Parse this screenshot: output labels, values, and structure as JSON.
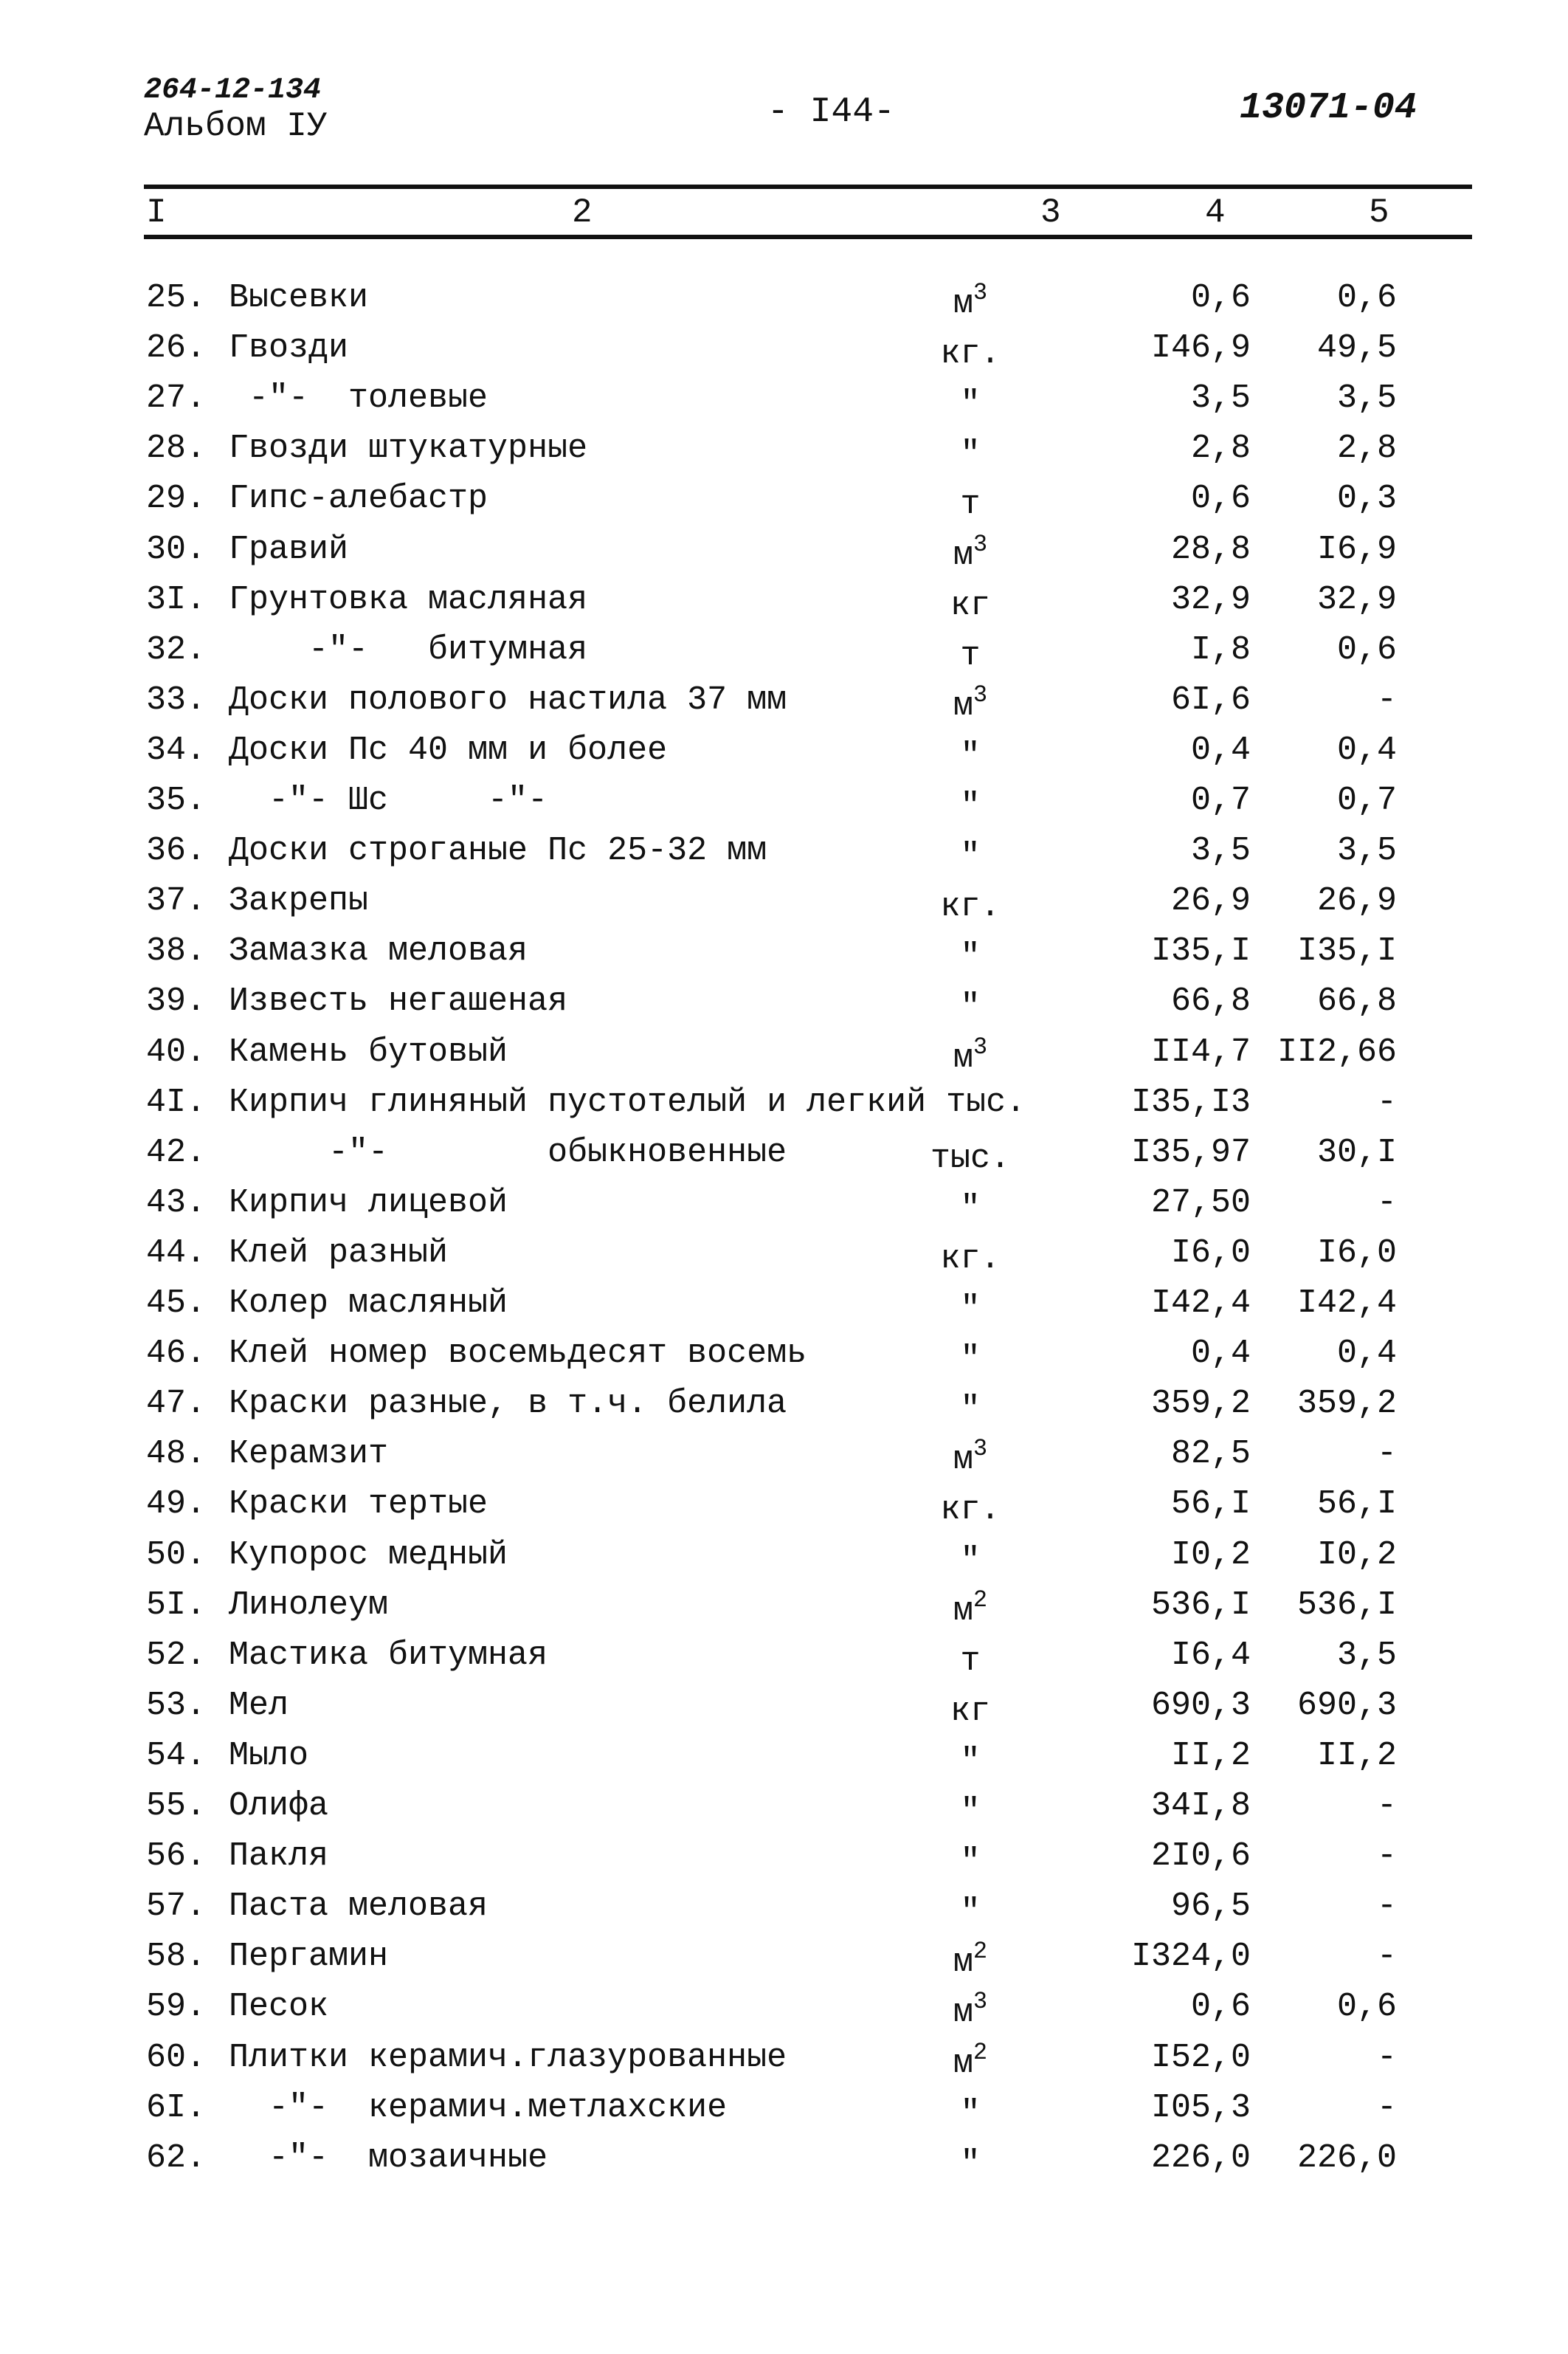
{
  "header": {
    "doc_code": "264-12-134",
    "album": "Альбом IУ",
    "page_number": "- I44-",
    "reference": "13071-04"
  },
  "columns": [
    "I",
    "2",
    "3",
    "4",
    "5"
  ],
  "rows": [
    {
      "num": "25.",
      "name": "Высевки",
      "unit": "м",
      "sup": "3",
      "c4": "0,6",
      "c5": "0,6"
    },
    {
      "num": "26.",
      "name": "Гвозди",
      "unit": "кг.",
      "sup": "",
      "c4": "I46,9",
      "c5": "49,5"
    },
    {
      "num": "27.",
      "name": " -\"-  толевые",
      "unit": "\"",
      "sup": "",
      "c4": "3,5",
      "c5": "3,5"
    },
    {
      "num": "28.",
      "name": "Гвозди штукатурные",
      "unit": "\"",
      "sup": "",
      "c4": "2,8",
      "c5": "2,8"
    },
    {
      "num": "29.",
      "name": "Гипс-алебастр",
      "unit": "т",
      "sup": "",
      "c4": "0,6",
      "c5": "0,3"
    },
    {
      "num": "30.",
      "name": "Гравий",
      "unit": "м",
      "sup": "3",
      "c4": "28,8",
      "c5": "I6,9"
    },
    {
      "num": "3I.",
      "name": "Грунтовка масляная",
      "unit": "кг",
      "sup": "",
      "c4": "32,9",
      "c5": "32,9"
    },
    {
      "num": "32.",
      "name": "    -\"-   битумная",
      "unit": "т",
      "sup": "",
      "c4": "I,8",
      "c5": "0,6"
    },
    {
      "num": "33.",
      "name": "Доски полового настила 37 мм",
      "unit": "м",
      "sup": "3",
      "c4": "6I,6",
      "c5": "-"
    },
    {
      "num": "34.",
      "name": "Доски Пс 40 мм и более",
      "unit": "\"",
      "sup": "",
      "c4": "0,4",
      "c5": "0,4"
    },
    {
      "num": "35.",
      "name": "  -\"- Шс     -\"-",
      "unit": "\"",
      "sup": "",
      "c4": "0,7",
      "c5": "0,7"
    },
    {
      "num": "36.",
      "name": "Доски строганые Пс 25-32 мм",
      "unit": "\"",
      "sup": "",
      "c4": "3,5",
      "c5": "3,5"
    },
    {
      "num": "37.",
      "name": "Закрепы",
      "unit": "кг.",
      "sup": "",
      "c4": "26,9",
      "c5": "26,9"
    },
    {
      "num": "38.",
      "name": "Замазка меловая",
      "unit": "\"",
      "sup": "",
      "c4": "I35,I",
      "c5": "I35,I"
    },
    {
      "num": "39.",
      "name": "Известь негашеная",
      "unit": "\"",
      "sup": "",
      "c4": "66,8",
      "c5": "66,8"
    },
    {
      "num": "40.",
      "name": "Камень бутовый",
      "unit": "м",
      "sup": "3",
      "c4": "II4,7",
      "c5": "II2,66"
    },
    {
      "num": "4I.",
      "name": "Кирпич глиняный пустотелый и легкий тыс.",
      "unit": "",
      "sup": "",
      "c4": "I35,I3",
      "c5": "-"
    },
    {
      "num": "42.",
      "name": "     -\"-        обыкновенные",
      "unit": "тыс.",
      "sup": "",
      "c4": "I35,97",
      "c5": "30,I"
    },
    {
      "num": "43.",
      "name": "Кирпич лицевой",
      "unit": "\"",
      "sup": "",
      "c4": "27,50",
      "c5": "-"
    },
    {
      "num": "44.",
      "name": "Клей разный",
      "unit": "кг.",
      "sup": "",
      "c4": "I6,0",
      "c5": "I6,0"
    },
    {
      "num": "45.",
      "name": "Колер масляный",
      "unit": "\"",
      "sup": "",
      "c4": "I42,4",
      "c5": "I42,4"
    },
    {
      "num": "46.",
      "name": "Клей номер восемьдесят восемь",
      "unit": "\"",
      "sup": "",
      "c4": "0,4",
      "c5": "0,4"
    },
    {
      "num": "47.",
      "name": "Краски разные, в т.ч. белила",
      "unit": "\"",
      "sup": "",
      "c4": "359,2",
      "c5": "359,2"
    },
    {
      "num": "48.",
      "name": "Керамзит",
      "unit": "м",
      "sup": "3",
      "c4": "82,5",
      "c5": "-"
    },
    {
      "num": "49.",
      "name": "Краски тертые",
      "unit": "кг.",
      "sup": "",
      "c4": "56,I",
      "c5": "56,I"
    },
    {
      "num": "50.",
      "name": "Купорос медный",
      "unit": "\"",
      "sup": "",
      "c4": "I0,2",
      "c5": "I0,2"
    },
    {
      "num": "5I.",
      "name": "Линолеум",
      "unit": "м",
      "sup": "2",
      "c4": "536,I",
      "c5": "536,I"
    },
    {
      "num": "52.",
      "name": "Мастика битумная",
      "unit": "т",
      "sup": "",
      "c4": "I6,4",
      "c5": "3,5"
    },
    {
      "num": "53.",
      "name": "Мел",
      "unit": "кг",
      "sup": "",
      "c4": "690,3",
      "c5": "690,3"
    },
    {
      "num": "54.",
      "name": "Мыло",
      "unit": "\"",
      "sup": "",
      "c4": "II,2",
      "c5": "II,2"
    },
    {
      "num": "55.",
      "name": "Олифа",
      "unit": "\"",
      "sup": "",
      "c4": "34I,8",
      "c5": "-"
    },
    {
      "num": "56.",
      "name": "Пакля",
      "unit": "\"",
      "sup": "",
      "c4": "2I0,6",
      "c5": "-"
    },
    {
      "num": "57.",
      "name": "Паста меловая",
      "unit": "\"",
      "sup": "",
      "c4": "96,5",
      "c5": "-"
    },
    {
      "num": "58.",
      "name": "Пергамин",
      "unit": "м",
      "sup": "2",
      "c4": "I324,0",
      "c5": "-"
    },
    {
      "num": "59.",
      "name": "Песок",
      "unit": "м",
      "sup": "3",
      "c4": "0,6",
      "c5": "0,6"
    },
    {
      "num": "60.",
      "name": "Плитки керамич.глазурованные",
      "unit": "м",
      "sup": "2",
      "c4": "I52,0",
      "c5": "-"
    },
    {
      "num": "6I.",
      "name": "  -\"-  керамич.метлахские",
      "unit": "\"",
      "sup": "",
      "c4": "I05,3",
      "c5": "-"
    },
    {
      "num": "62.",
      "name": "  -\"-  мозаичные",
      "unit": "\"",
      "sup": "",
      "c4": "226,0",
      "c5": "226,0"
    }
  ]
}
